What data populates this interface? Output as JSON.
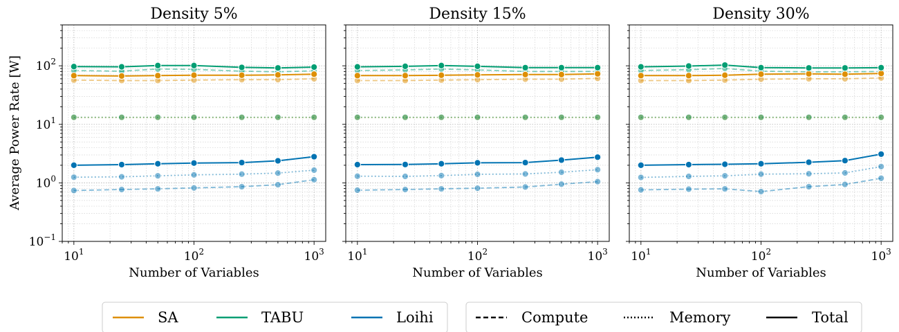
{
  "figure": {
    "ylabel": "Average Power Rate [W]",
    "xlabel": "Number of Variables",
    "legend_algorithms": [
      {
        "label": "SA",
        "color": "#DE8F05"
      },
      {
        "label": "TABU",
        "color": "#029E73"
      },
      {
        "label": "Loihi",
        "color": "#0173B2"
      }
    ],
    "legend_metrics": [
      {
        "label": "Compute",
        "dash": "dashed"
      },
      {
        "label": "Memory",
        "dash": "dotted"
      },
      {
        "label": "Total",
        "dash": "solid"
      }
    ]
  },
  "chart_data": [
    {
      "type": "line",
      "title": "Density 5%",
      "xlabel": "Number of Variables",
      "ylabel": "Average Power Rate [W]",
      "xscale": "log",
      "yscale": "log",
      "xlim": [
        8,
        1250
      ],
      "ylim": [
        0.1,
        500
      ],
      "x": [
        10,
        25,
        50,
        100,
        250,
        500,
        1000
      ],
      "xticks": [
        {
          "v": 10,
          "b": "10",
          "e": "1"
        },
        {
          "v": 100,
          "b": "10",
          "e": "2"
        },
        {
          "v": 1000,
          "b": "10",
          "e": "3"
        }
      ],
      "yticks": [
        {
          "v": 0.1,
          "b": "10",
          "e": "−1"
        },
        {
          "v": 1,
          "b": "10",
          "e": "0"
        },
        {
          "v": 10,
          "b": "10",
          "e": "1"
        },
        {
          "v": 100,
          "b": "10",
          "e": "2"
        }
      ],
      "grid": true,
      "series": [
        {
          "name": "SA",
          "metric": "Total",
          "values": [
            68,
            67,
            68,
            69,
            69,
            70,
            72
          ]
        },
        {
          "name": "SA",
          "metric": "Compute",
          "values": [
            57,
            56,
            56,
            57,
            58,
            58,
            60
          ]
        },
        {
          "name": "SA",
          "metric": "Memory",
          "values": [
            13.1,
            13.1,
            13.1,
            13.1,
            13.1,
            13.1,
            13.1
          ]
        },
        {
          "name": "TABU",
          "metric": "Total",
          "values": [
            97,
            96,
            101,
            101,
            94,
            92,
            95
          ]
        },
        {
          "name": "TABU",
          "metric": "Compute",
          "values": [
            83,
            81,
            88,
            87,
            81,
            79,
            82
          ]
        },
        {
          "name": "TABU",
          "metric": "Memory",
          "values": [
            13.2,
            13.2,
            13.2,
            13.2,
            13.2,
            13.2,
            13.2
          ]
        },
        {
          "name": "Loihi",
          "metric": "Total",
          "values": [
            2.0,
            2.05,
            2.12,
            2.18,
            2.22,
            2.38,
            2.8
          ]
        },
        {
          "name": "Loihi",
          "metric": "Memory",
          "values": [
            1.25,
            1.27,
            1.32,
            1.37,
            1.41,
            1.47,
            1.65
          ]
        },
        {
          "name": "Loihi",
          "metric": "Compute",
          "values": [
            0.74,
            0.77,
            0.79,
            0.82,
            0.86,
            0.93,
            1.13
          ]
        }
      ]
    },
    {
      "type": "line",
      "title": "Density 15%",
      "xlabel": "Number of Variables",
      "ylabel": "Average Power Rate [W]",
      "xscale": "log",
      "yscale": "log",
      "xlim": [
        8,
        1250
      ],
      "ylim": [
        0.1,
        500
      ],
      "x": [
        10,
        25,
        50,
        100,
        250,
        500,
        1000
      ],
      "xticks": [
        {
          "v": 10,
          "b": "10",
          "e": "1"
        },
        {
          "v": 100,
          "b": "10",
          "e": "2"
        },
        {
          "v": 1000,
          "b": "10",
          "e": "3"
        }
      ],
      "yticks": [
        {
          "v": 0.1,
          "b": "10",
          "e": "−1"
        },
        {
          "v": 1,
          "b": "10",
          "e": "0"
        },
        {
          "v": 10,
          "b": "10",
          "e": "1"
        },
        {
          "v": 100,
          "b": "10",
          "e": "2"
        }
      ],
      "grid": true,
      "series": [
        {
          "name": "SA",
          "metric": "Total",
          "values": [
            68,
            68,
            69,
            70,
            71,
            71,
            73
          ]
        },
        {
          "name": "SA",
          "metric": "Compute",
          "values": [
            56,
            56,
            57,
            58,
            59,
            59,
            61
          ]
        },
        {
          "name": "SA",
          "metric": "Memory",
          "values": [
            13.1,
            13.1,
            13.1,
            13.1,
            13.1,
            13.1,
            13.1
          ]
        },
        {
          "name": "TABU",
          "metric": "Total",
          "values": [
            96,
            98,
            101,
            98,
            93,
            93,
            93
          ]
        },
        {
          "name": "TABU",
          "metric": "Compute",
          "values": [
            83,
            85,
            88,
            85,
            80,
            80,
            80
          ]
        },
        {
          "name": "TABU",
          "metric": "Memory",
          "values": [
            13.2,
            13.2,
            13.2,
            13.2,
            13.2,
            13.2,
            13.2
          ]
        },
        {
          "name": "Loihi",
          "metric": "Total",
          "values": [
            2.05,
            2.06,
            2.12,
            2.2,
            2.22,
            2.45,
            2.75
          ]
        },
        {
          "name": "Loihi",
          "metric": "Memory",
          "values": [
            1.3,
            1.29,
            1.33,
            1.4,
            1.42,
            1.52,
            1.68
          ]
        },
        {
          "name": "Loihi",
          "metric": "Compute",
          "values": [
            0.75,
            0.77,
            0.79,
            0.81,
            0.85,
            0.95,
            1.05
          ]
        }
      ]
    },
    {
      "type": "line",
      "title": "Density 30%",
      "xlabel": "Number of Variables",
      "ylabel": "Average Power Rate [W]",
      "xscale": "log",
      "yscale": "log",
      "xlim": [
        8,
        1250
      ],
      "ylim": [
        0.1,
        500
      ],
      "x": [
        10,
        25,
        50,
        100,
        250,
        500,
        1000
      ],
      "xticks": [
        {
          "v": 10,
          "b": "10",
          "e": "1"
        },
        {
          "v": 100,
          "b": "10",
          "e": "2"
        },
        {
          "v": 1000,
          "b": "10",
          "e": "3"
        }
      ],
      "yticks": [
        {
          "v": 0.1,
          "b": "10",
          "e": "−1"
        },
        {
          "v": 1,
          "b": "10",
          "e": "0"
        },
        {
          "v": 10,
          "b": "10",
          "e": "1"
        },
        {
          "v": 100,
          "b": "10",
          "e": "2"
        }
      ],
      "grid": true,
      "series": [
        {
          "name": "SA",
          "metric": "Total",
          "values": [
            68,
            68,
            69,
            72,
            73,
            72,
            74
          ]
        },
        {
          "name": "SA",
          "metric": "Compute",
          "values": [
            56,
            56,
            57,
            59,
            60,
            60,
            62
          ]
        },
        {
          "name": "SA",
          "metric": "Memory",
          "values": [
            13.1,
            13.1,
            13.1,
            13.1,
            13.1,
            13.1,
            13.1
          ]
        },
        {
          "name": "TABU",
          "metric": "Total",
          "values": [
            96,
            99,
            103,
            93,
            92,
            92,
            93
          ]
        },
        {
          "name": "TABU",
          "metric": "Compute",
          "values": [
            83,
            86,
            90,
            81,
            79,
            79,
            80
          ]
        },
        {
          "name": "TABU",
          "metric": "Memory",
          "values": [
            13.2,
            13.2,
            13.2,
            13.2,
            13.2,
            13.2,
            13.2
          ]
        },
        {
          "name": "Loihi",
          "metric": "Total",
          "values": [
            2.0,
            2.05,
            2.08,
            2.12,
            2.25,
            2.4,
            3.1
          ]
        },
        {
          "name": "Loihi",
          "metric": "Memory",
          "values": [
            1.24,
            1.29,
            1.32,
            1.41,
            1.43,
            1.48,
            1.9
          ]
        },
        {
          "name": "Loihi",
          "metric": "Compute",
          "values": [
            0.76,
            0.78,
            0.79,
            0.71,
            0.86,
            0.94,
            1.2
          ]
        }
      ]
    }
  ]
}
